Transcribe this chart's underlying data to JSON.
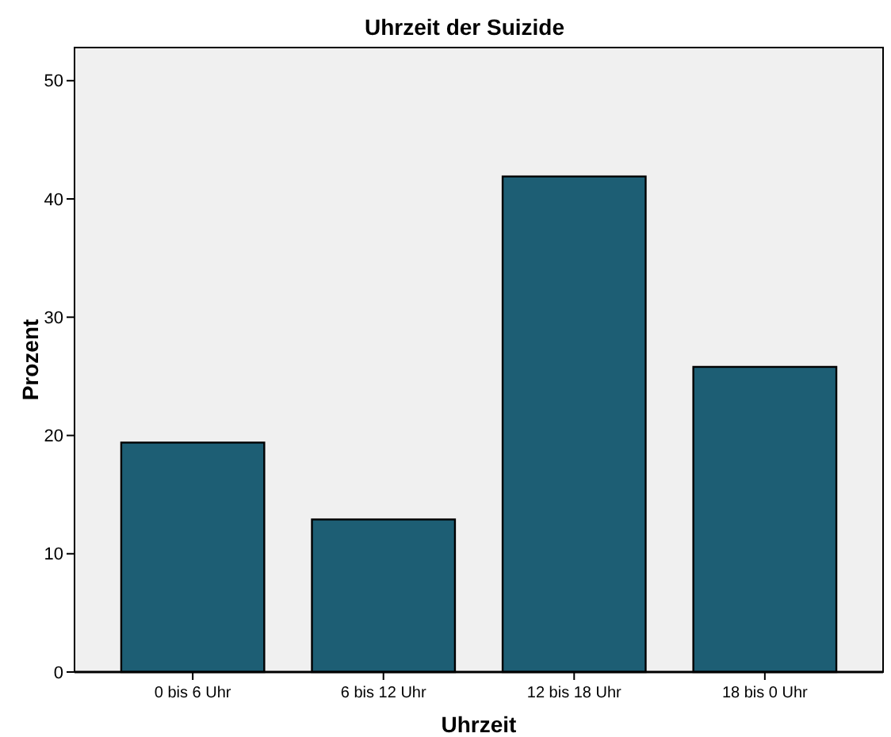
{
  "chart_data": {
    "type": "bar",
    "title": "Uhrzeit der Suizide",
    "xlabel": "Uhrzeit",
    "ylabel": "Prozent",
    "categories": [
      "0 bis 6 Uhr",
      "6 bis 12 Uhr",
      "12 bis 18 Uhr",
      "18 bis 0 Uhr"
    ],
    "values": [
      19.4,
      12.9,
      41.9,
      25.8
    ],
    "color": "#1d5e74",
    "ylim": [
      0,
      52.8
    ],
    "yticks": [
      0,
      10,
      20,
      30,
      40,
      50
    ]
  }
}
